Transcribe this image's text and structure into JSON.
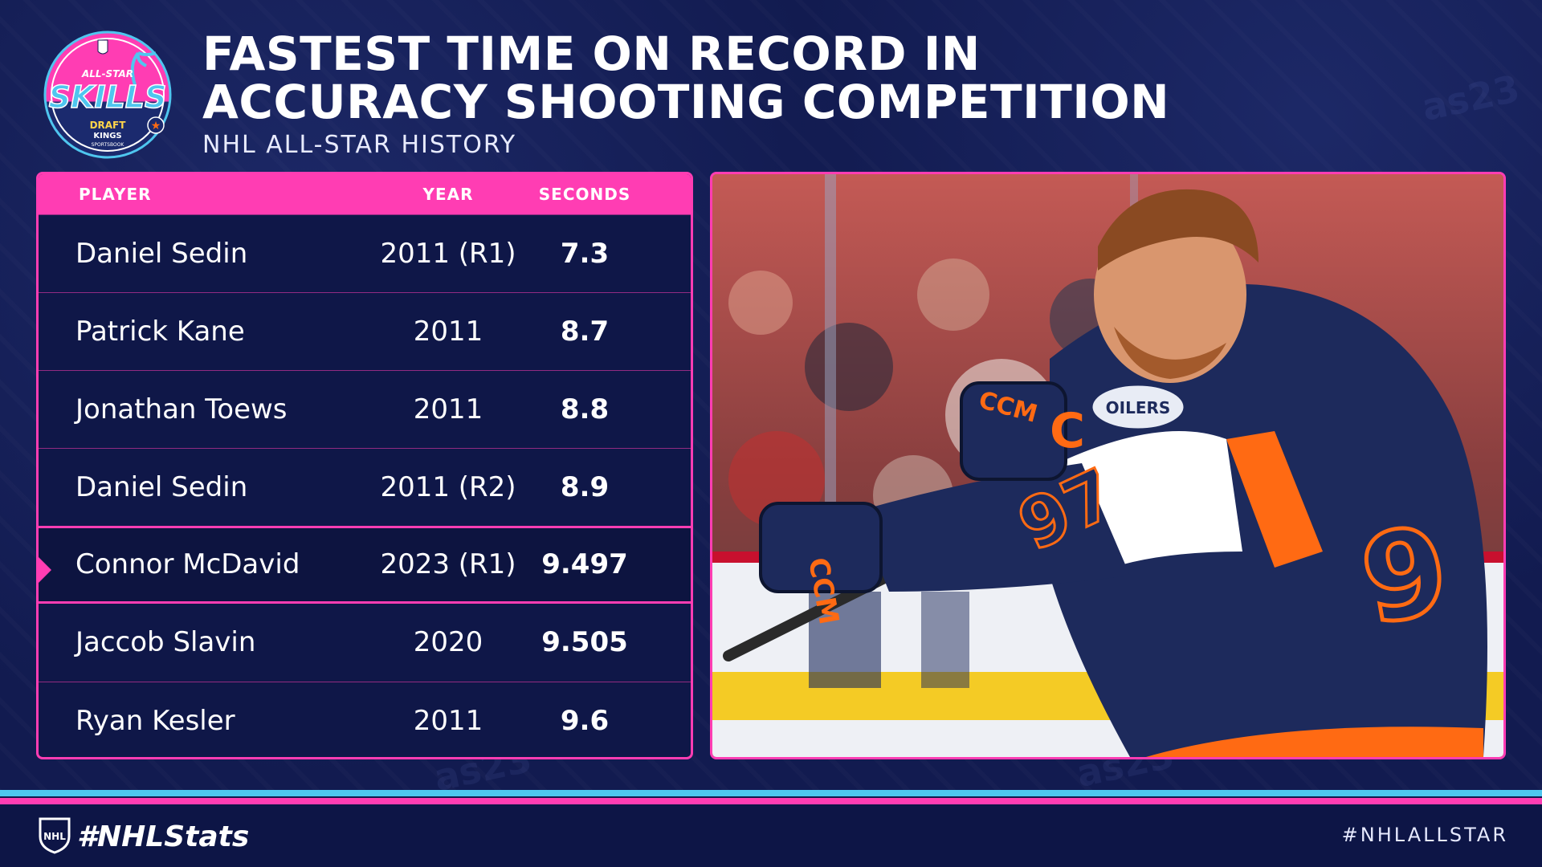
{
  "logo": {
    "line1": "ALL-STAR",
    "line2": "SKILLS",
    "sponsor_line1": "DRAFT",
    "sponsor_line2": "KINGS",
    "sponsor_line3": "SPORTSBOOK",
    "icon": "all-star-skills-logo"
  },
  "header": {
    "title_line1": "FASTEST TIME ON RECORD IN",
    "title_line2": "ACCURACY SHOOTING COMPETITION",
    "subtitle": "NHL ALL-STAR HISTORY"
  },
  "table": {
    "columns": [
      "PLAYER",
      "YEAR",
      "SECONDS"
    ],
    "rows": [
      {
        "player": "Daniel Sedin",
        "year": "2011 (R1)",
        "seconds": "7.3"
      },
      {
        "player": "Patrick Kane",
        "year": "2011",
        "seconds": "8.7"
      },
      {
        "player": "Jonathan Toews",
        "year": "2011",
        "seconds": "8.8"
      },
      {
        "player": "Daniel Sedin",
        "year": "2011 (R2)",
        "seconds": "8.9"
      },
      {
        "player": "Connor McDavid",
        "year": "2023 (R1)",
        "seconds": "9.497"
      },
      {
        "player": "Jaccob Slavin",
        "year": "2020",
        "seconds": "9.505"
      },
      {
        "player": "Ryan Kesler",
        "year": "2011",
        "seconds": "9.6"
      }
    ],
    "highlighted_row": 4
  },
  "photo": {
    "jersey_number": "97",
    "glove_brand": "CCM",
    "team_crest": "OILERS",
    "icon": "player-photo"
  },
  "footer": {
    "stats_hashtag": "#NHLStats",
    "allstar_hashtag": "#NHLALLSTAR"
  },
  "colors": {
    "background": "#121b50",
    "accent_pink": "#ff3db3",
    "accent_blue": "#4fc6ef",
    "jersey_navy": "#1d2a5c",
    "jersey_orange": "#ff6a13"
  }
}
